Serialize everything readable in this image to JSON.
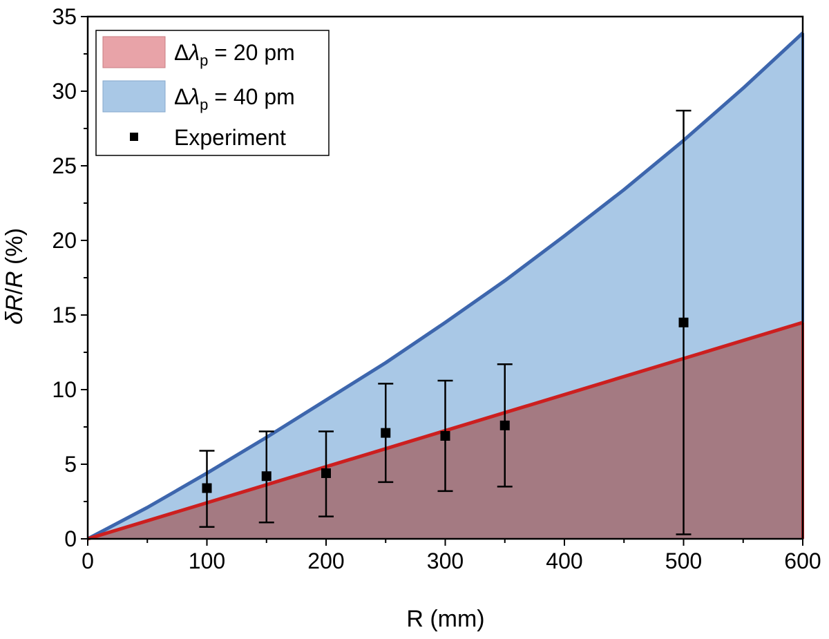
{
  "chart_data": {
    "type": "area",
    "xlabel": "R (mm)",
    "ylabel": {
      "delta": "δ",
      "r1": "R",
      "slash": "/",
      "r2": "R",
      "unit": " (%)"
    },
    "xlim": [
      0,
      600
    ],
    "ylim": [
      0,
      35
    ],
    "x_ticks": [
      0,
      100,
      200,
      300,
      400,
      500,
      600
    ],
    "y_ticks": [
      0,
      5,
      10,
      15,
      20,
      25,
      30,
      35
    ],
    "grid": false,
    "legend_position": "top-left",
    "series": [
      {
        "kind": "area",
        "legend": {
          "prefix": "Δ",
          "lambda": "λ",
          "sub": "p",
          "suffix": " = 40 pm"
        },
        "fill_color": "#a9c8e6",
        "line_color": "#3d66ad",
        "x": [
          0,
          50,
          100,
          150,
          200,
          250,
          300,
          350,
          400,
          450,
          500,
          550,
          600
        ],
        "y": [
          0,
          2.1,
          4.4,
          6.8,
          9.3,
          11.8,
          14.5,
          17.3,
          20.3,
          23.4,
          26.7,
          30.2,
          33.9
        ]
      },
      {
        "kind": "area",
        "legend": {
          "prefix": "Δ",
          "lambda": "λ",
          "sub": "p",
          "suffix": " = 20 pm"
        },
        "fill_color": "#a47a82",
        "legend_swatch_color": "#e8a3a8",
        "line_color": "#cc1f1f",
        "x": [
          0,
          600
        ],
        "y": [
          0,
          14.5
        ]
      },
      {
        "kind": "points",
        "legend": {
          "text": "Experiment"
        },
        "color": "#000000",
        "x": [
          100,
          150,
          200,
          250,
          300,
          350,
          500
        ],
        "y": [
          3.4,
          4.2,
          4.4,
          7.1,
          6.9,
          7.6,
          14.5
        ],
        "err_low": [
          0.8,
          1.1,
          1.5,
          3.8,
          3.2,
          3.5,
          0.3
        ],
        "err_high": [
          5.9,
          7.2,
          7.2,
          10.4,
          10.6,
          11.7,
          28.7
        ]
      }
    ]
  }
}
